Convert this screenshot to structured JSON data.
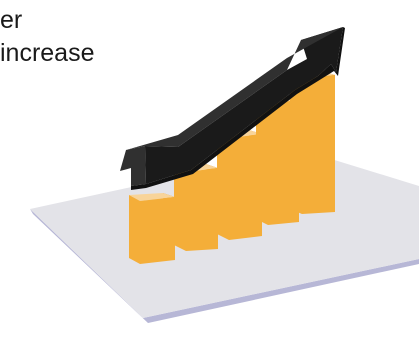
{
  "text": {
    "line1": "er",
    "line2": "increase"
  },
  "colors": {
    "platform_top": "#e3e3e8",
    "platform_edge": "#b7b7d6",
    "bar_front": "#f4ae39",
    "bar_top": "#f8d49a",
    "bar_side": "#e49a25",
    "arrow_dark": "#1a1a1a",
    "arrow_light": "#303030"
  },
  "icons": {
    "illustration": "growth-chart-with-arrow-icon",
    "arrow": "upward-arrow-icon"
  },
  "bars": [
    {
      "level": 0.3
    },
    {
      "level": 0.45
    },
    {
      "level": 0.58
    },
    {
      "level": 0.75
    },
    {
      "level": 0.92
    }
  ]
}
